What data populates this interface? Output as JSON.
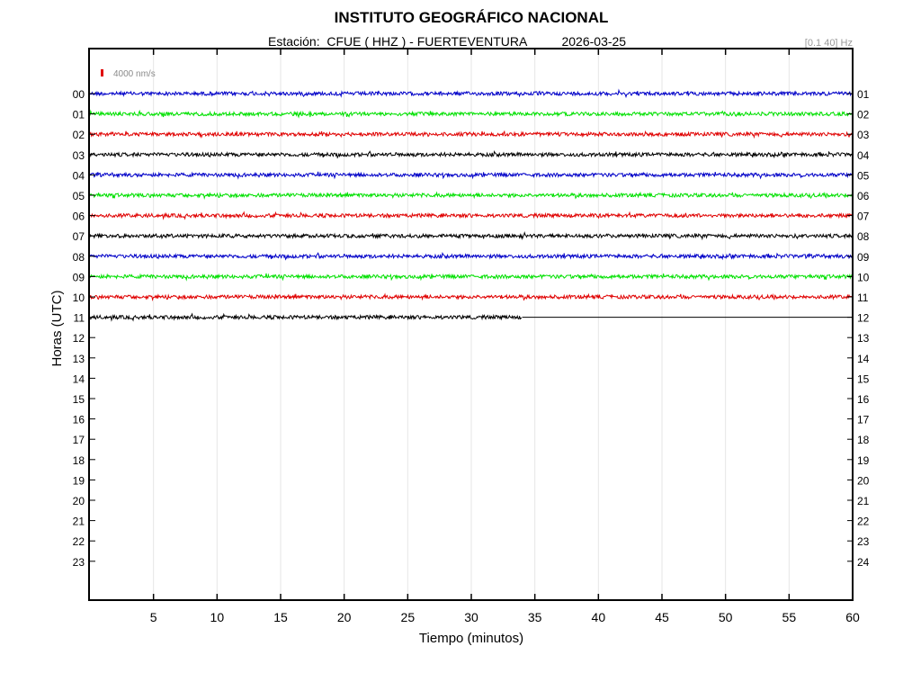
{
  "header": {
    "title": "INSTITUTO GEOGRÁFICO NACIONAL",
    "station_label": "Estación:",
    "station": "CFUE ( HHZ ) - FUERTEVENTURA",
    "date": "2026-03-25",
    "filter": "[0.1 40] Hz"
  },
  "chart_data": {
    "type": "line",
    "title": "INSTITUTO GEOGRÁFICO NACIONAL",
    "xlabel": "Tiempo (minutos)",
    "ylabel": "Horas (UTC)",
    "xlim": [
      0,
      60
    ],
    "x_ticks": [
      5,
      10,
      15,
      20,
      25,
      30,
      35,
      40,
      45,
      50,
      55,
      60
    ],
    "left_hour_labels": [
      "00",
      "01",
      "02",
      "03",
      "04",
      "05",
      "06",
      "07",
      "08",
      "09",
      "10",
      "11",
      "12",
      "13",
      "14",
      "15",
      "16",
      "17",
      "18",
      "19",
      "20",
      "21",
      "22",
      "23"
    ],
    "right_hour_labels": [
      "01",
      "02",
      "03",
      "04",
      "05",
      "06",
      "07",
      "08",
      "09",
      "10",
      "11",
      "12",
      "13",
      "14",
      "15",
      "16",
      "17",
      "18",
      "19",
      "20",
      "21",
      "22",
      "23",
      "24"
    ],
    "scale_bar": {
      "label": "4000 nm/s",
      "color": "#e00000"
    },
    "grid": "vertical lines every 5 minutes",
    "series": [
      {
        "hour": "00",
        "color": "#0000c8",
        "end_minute": 60
      },
      {
        "hour": "01",
        "color": "#00e000",
        "end_minute": 60
      },
      {
        "hour": "02",
        "color": "#e00000",
        "end_minute": 60
      },
      {
        "hour": "03",
        "color": "#000000",
        "end_minute": 60
      },
      {
        "hour": "04",
        "color": "#0000c8",
        "end_minute": 60
      },
      {
        "hour": "05",
        "color": "#00e000",
        "end_minute": 60
      },
      {
        "hour": "06",
        "color": "#e00000",
        "end_minute": 60
      },
      {
        "hour": "07",
        "color": "#000000",
        "end_minute": 60
      },
      {
        "hour": "08",
        "color": "#0000c8",
        "end_minute": 60
      },
      {
        "hour": "09",
        "color": "#00e000",
        "end_minute": 60
      },
      {
        "hour": "10",
        "color": "#e00000",
        "end_minute": 60
      },
      {
        "hour": "11",
        "color": "#000000",
        "end_minute": 34
      }
    ]
  }
}
